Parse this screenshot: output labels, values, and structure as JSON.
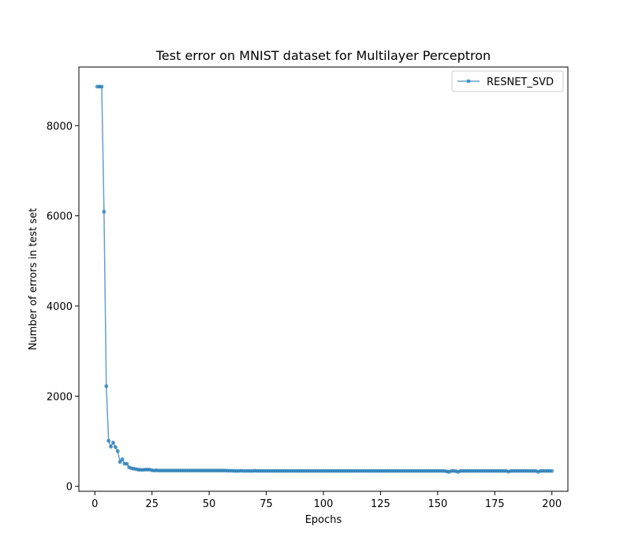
{
  "chart_data": {
    "type": "line",
    "title": "Test error on MNIST dataset for Multilayer Perceptron",
    "xlabel": "Epochs",
    "ylabel": "Number of errors in test set",
    "xlim": [
      -7,
      207
    ],
    "ylim": [
      -110,
      9300
    ],
    "xticks": [
      0,
      25,
      50,
      75,
      100,
      125,
      150,
      175,
      200
    ],
    "yticks": [
      0,
      2000,
      4000,
      6000,
      8000
    ],
    "grid": false,
    "legend_position": "top-right",
    "series_color": "#1f77b4",
    "series": [
      {
        "name": "RESNET_SVD",
        "x": [
          1,
          2,
          3,
          4,
          5,
          6,
          7,
          8,
          9,
          10,
          11,
          12,
          13,
          14,
          15,
          16,
          17,
          18,
          19,
          20,
          21,
          22,
          23,
          24,
          25,
          26,
          27,
          28,
          29,
          30,
          31,
          32,
          33,
          34,
          35,
          36,
          37,
          38,
          39,
          40,
          41,
          42,
          43,
          44,
          45,
          46,
          47,
          48,
          49,
          50,
          51,
          52,
          53,
          54,
          55,
          56,
          57,
          58,
          59,
          60,
          61,
          62,
          63,
          64,
          65,
          66,
          67,
          68,
          69,
          70,
          71,
          72,
          73,
          74,
          75,
          76,
          77,
          78,
          79,
          80,
          81,
          82,
          83,
          84,
          85,
          86,
          87,
          88,
          89,
          90,
          91,
          92,
          93,
          94,
          95,
          96,
          97,
          98,
          99,
          100,
          101,
          102,
          103,
          104,
          105,
          106,
          107,
          108,
          109,
          110,
          111,
          112,
          113,
          114,
          115,
          116,
          117,
          118,
          119,
          120,
          121,
          122,
          123,
          124,
          125,
          126,
          127,
          128,
          129,
          130,
          131,
          132,
          133,
          134,
          135,
          136,
          137,
          138,
          139,
          140,
          141,
          142,
          143,
          144,
          145,
          146,
          147,
          148,
          149,
          150,
          151,
          152,
          153,
          154,
          155,
          156,
          157,
          158,
          159,
          160,
          161,
          162,
          163,
          164,
          165,
          166,
          167,
          168,
          169,
          170,
          171,
          172,
          173,
          174,
          175,
          176,
          177,
          178,
          179,
          180,
          181,
          182,
          183,
          184,
          185,
          186,
          187,
          188,
          189,
          190,
          191,
          192,
          193,
          194,
          195,
          196,
          197,
          198,
          199,
          200
        ],
        "y": [
          8865,
          8865,
          8865,
          6090,
          2220,
          1010,
          880,
          970,
          870,
          780,
          540,
          600,
          500,
          500,
          420,
          400,
          390,
          380,
          370,
          365,
          365,
          370,
          370,
          370,
          355,
          350,
          355,
          350,
          350,
          350,
          350,
          350,
          350,
          350,
          350,
          350,
          350,
          350,
          350,
          350,
          350,
          350,
          350,
          350,
          350,
          350,
          350,
          350,
          350,
          350,
          350,
          350,
          350,
          350,
          350,
          350,
          350,
          345,
          345,
          345,
          340,
          340,
          340,
          345,
          340,
          340,
          340,
          340,
          340,
          345,
          340,
          340,
          340,
          340,
          340,
          340,
          340,
          340,
          340,
          340,
          340,
          340,
          340,
          340,
          340,
          340,
          340,
          340,
          340,
          340,
          340,
          340,
          340,
          340,
          340,
          340,
          340,
          340,
          340,
          340,
          340,
          340,
          340,
          340,
          340,
          340,
          340,
          340,
          340,
          340,
          340,
          340,
          340,
          340,
          340,
          340,
          340,
          340,
          340,
          340,
          340,
          340,
          340,
          340,
          340,
          340,
          340,
          340,
          340,
          340,
          340,
          340,
          340,
          340,
          340,
          340,
          340,
          340,
          340,
          340,
          340,
          340,
          340,
          340,
          340,
          340,
          340,
          340,
          340,
          340,
          340,
          340,
          340,
          330,
          320,
          340,
          340,
          335,
          320,
          340,
          340,
          340,
          340,
          340,
          340,
          340,
          340,
          340,
          340,
          340,
          340,
          340,
          340,
          340,
          340,
          340,
          340,
          340,
          340,
          340,
          325,
          340,
          340,
          340,
          340,
          340,
          340,
          340,
          340,
          340,
          340,
          340,
          340,
          320,
          340,
          340,
          340,
          340,
          340,
          340
        ]
      }
    ]
  }
}
